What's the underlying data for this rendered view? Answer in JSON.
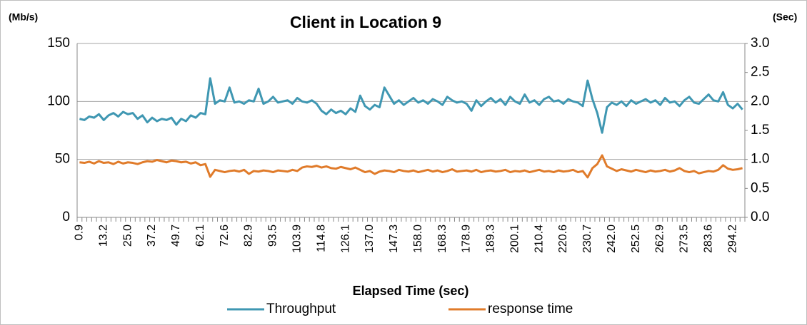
{
  "chart_data": {
    "type": "line",
    "title": "Client in Location 9",
    "ylabel": "(Mb/s)",
    "y2label": "(Sec)",
    "xlabel": "Elapsed Time (sec)",
    "ylim": [
      0,
      150
    ],
    "yticks": [
      0,
      50,
      100,
      150
    ],
    "y2lim": [
      0,
      3
    ],
    "y2ticks": [
      {
        "value": 0,
        "label": "0.0"
      },
      0.5,
      {
        "value": 1,
        "label": "1.0"
      },
      1.5,
      {
        "value": 2,
        "label": "2.0"
      },
      2.5,
      {
        "value": 3,
        "label": "3.0"
      }
    ],
    "grid": true,
    "legend": "bottom",
    "categories": [
      "0.9",
      null,
      null,
      null,
      null,
      "13.2",
      null,
      null,
      null,
      null,
      "25.0",
      null,
      null,
      null,
      null,
      "37.2",
      null,
      null,
      null,
      null,
      "49.7",
      null,
      null,
      null,
      null,
      "62.1",
      null,
      null,
      null,
      null,
      "72.6",
      null,
      null,
      null,
      null,
      "82.9",
      null,
      null,
      null,
      null,
      "93.5",
      null,
      null,
      null,
      null,
      "103.9",
      null,
      null,
      null,
      null,
      "114.8",
      null,
      null,
      null,
      null,
      "126.1",
      null,
      null,
      null,
      null,
      "137.0",
      null,
      null,
      null,
      null,
      "147.3",
      null,
      null,
      null,
      null,
      "158.0",
      null,
      null,
      null,
      null,
      "168.3",
      null,
      null,
      null,
      null,
      "178.9",
      null,
      null,
      null,
      null,
      "189.3",
      null,
      null,
      null,
      null,
      "200.1",
      null,
      null,
      null,
      null,
      "210.4",
      null,
      null,
      null,
      null,
      "220.6",
      null,
      null,
      null,
      null,
      "230.7",
      null,
      null,
      null,
      null,
      "242.0",
      null,
      null,
      null,
      null,
      "252.5",
      null,
      null,
      null,
      null,
      "262.9",
      null,
      null,
      null,
      null,
      "273.5",
      null,
      null,
      null,
      null,
      "283.6",
      null,
      null,
      null,
      null,
      "294.2",
      null,
      null
    ],
    "series": [
      {
        "name": "Throughput",
        "color": "#3f97b2",
        "values": [
          85,
          84,
          87,
          86,
          89,
          84,
          88,
          90,
          87,
          91,
          89,
          90,
          85,
          88,
          82,
          86,
          83,
          85,
          84,
          86,
          80,
          85,
          83,
          88,
          86,
          90,
          89,
          120,
          98,
          101,
          100,
          112,
          99,
          100,
          98,
          101,
          100,
          111,
          98,
          100,
          104,
          99,
          100,
          101,
          98,
          103,
          100,
          99,
          101,
          98,
          92,
          89,
          93,
          90,
          92,
          89,
          94,
          91,
          105,
          96,
          93,
          97,
          95,
          112,
          105,
          98,
          101,
          97,
          100,
          103,
          99,
          101,
          98,
          102,
          100,
          97,
          104,
          101,
          99,
          100,
          98,
          92,
          101,
          96,
          100,
          103,
          99,
          102,
          97,
          104,
          100,
          98,
          106,
          99,
          101,
          97,
          102,
          104,
          100,
          101,
          98,
          102,
          100,
          99,
          96,
          118,
          102,
          90,
          73,
          95,
          99,
          97,
          100,
          96,
          101,
          98,
          100,
          102,
          99,
          101,
          97,
          103,
          99,
          100,
          96,
          101,
          104,
          99,
          98,
          102,
          106,
          101,
          100,
          108,
          97,
          94,
          98,
          93
        ]
      },
      {
        "name": "response time",
        "color": "#e07b2a",
        "axis": "y2",
        "values": [
          0.95,
          0.94,
          0.96,
          0.93,
          0.97,
          0.94,
          0.95,
          0.92,
          0.96,
          0.93,
          0.95,
          0.94,
          0.92,
          0.95,
          0.97,
          0.96,
          0.99,
          0.97,
          0.95,
          0.98,
          0.97,
          0.95,
          0.96,
          0.93,
          0.95,
          0.9,
          0.92,
          0.7,
          0.82,
          0.8,
          0.78,
          0.8,
          0.81,
          0.79,
          0.82,
          0.75,
          0.8,
          0.79,
          0.81,
          0.8,
          0.78,
          0.81,
          0.8,
          0.79,
          0.82,
          0.8,
          0.86,
          0.88,
          0.87,
          0.89,
          0.86,
          0.88,
          0.85,
          0.84,
          0.87,
          0.85,
          0.83,
          0.86,
          0.82,
          0.78,
          0.8,
          0.75,
          0.79,
          0.81,
          0.8,
          0.78,
          0.82,
          0.8,
          0.79,
          0.81,
          0.78,
          0.8,
          0.82,
          0.79,
          0.81,
          0.78,
          0.8,
          0.83,
          0.79,
          0.8,
          0.81,
          0.79,
          0.82,
          0.78,
          0.8,
          0.81,
          0.79,
          0.8,
          0.82,
          0.78,
          0.8,
          0.79,
          0.81,
          0.78,
          0.8,
          0.82,
          0.79,
          0.8,
          0.78,
          0.81,
          0.79,
          0.8,
          0.82,
          0.78,
          0.8,
          0.69,
          0.85,
          0.92,
          1.07,
          0.88,
          0.84,
          0.8,
          0.83,
          0.81,
          0.79,
          0.82,
          0.8,
          0.78,
          0.81,
          0.79,
          0.8,
          0.82,
          0.79,
          0.81,
          0.85,
          0.8,
          0.78,
          0.8,
          0.76,
          0.78,
          0.8,
          0.79,
          0.82,
          0.9,
          0.84,
          0.82,
          0.83,
          0.85
        ]
      }
    ]
  }
}
